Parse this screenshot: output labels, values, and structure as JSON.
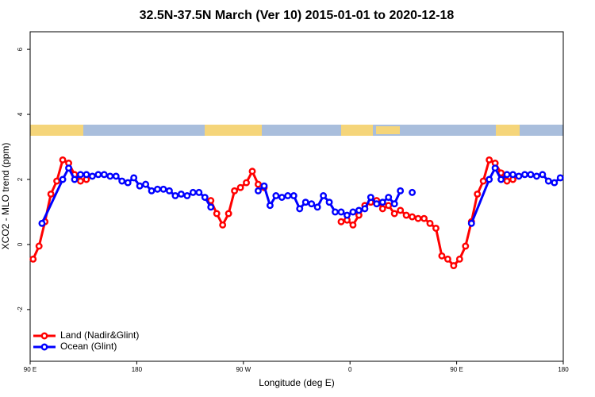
{
  "chart_data": {
    "type": "line",
    "title": "32.5N-37.5N March (Ver 10)   2015-01-01 to 2020-12-18",
    "xlabel": "Longitude (deg E)",
    "ylabel": "XCO2 - MLO trend (ppm)",
    "xlim": [
      90,
      540
    ],
    "ylim": [
      -3.59,
      6.54
    ],
    "xticks": [
      {
        "value": 90,
        "label": "90 E"
      },
      {
        "value": 180,
        "label": "180"
      },
      {
        "value": 270,
        "label": "90 W"
      },
      {
        "value": 360,
        "label": "0"
      },
      {
        "value": 450,
        "label": "90 E"
      },
      {
        "value": 540,
        "label": "180"
      }
    ],
    "yticks": [
      -2,
      0,
      2,
      4,
      6
    ],
    "legend": "bottomleft",
    "series": [
      {
        "name": "Land (Nadir&Glint)",
        "color": "#ff0000",
        "x": [
          92.5,
          97.5,
          102.5,
          107.5,
          112.5,
          117.5,
          122.5,
          127.5,
          132.5,
          137.5,
          142.5,
          242.5,
          247.5,
          252.5,
          257.5,
          262.5,
          267.5,
          272.5,
          277.5,
          282.5,
          287.5,
          292.5,
          352.5,
          357.5,
          362.5,
          367.5,
          372.5,
          377.5,
          382.5,
          387.5,
          392.5,
          397.5,
          402.5,
          407.5,
          412.5,
          417.5,
          422.5,
          427.5,
          432.5,
          437.5,
          442.5,
          447.5,
          452.5,
          457.5,
          462.5,
          467.5,
          472.5,
          477.5,
          482.5,
          487.5,
          492.5,
          497.5
        ],
        "values": [
          -0.45,
          -0.05,
          0.7,
          1.55,
          1.95,
          2.6,
          2.5,
          2.15,
          1.95,
          2.0,
          null,
          1.35,
          0.95,
          0.6,
          0.95,
          1.65,
          1.75,
          1.9,
          2.25,
          1.85,
          1.75,
          null,
          0.7,
          0.75,
          0.6,
          0.9,
          1.2,
          1.3,
          1.35,
          1.1,
          1.2,
          0.95,
          1.05,
          0.9,
          0.85,
          0.8,
          0.8,
          0.65,
          0.5,
          -0.35,
          -0.45,
          -0.65,
          -0.45,
          -0.05,
          0.7,
          1.55,
          1.95,
          2.6,
          2.5,
          2.2,
          1.95,
          2.0
        ]
      },
      {
        "name": "Ocean (Glint)",
        "color": "#0000ff",
        "x": [
          100,
          117.5,
          122.5,
          127.5,
          132.5,
          137.5,
          142.5,
          147.5,
          152.5,
          157.5,
          162.5,
          167.5,
          172.5,
          177.5,
          182.5,
          187.5,
          192.5,
          197.5,
          202.5,
          207.5,
          212.5,
          217.5,
          222.5,
          227.5,
          232.5,
          237.5,
          242.5,
          247.5,
          282.5,
          287.5,
          292.5,
          297.5,
          302.5,
          307.5,
          312.5,
          317.5,
          322.5,
          327.5,
          332.5,
          337.5,
          342.5,
          347.5,
          352.5,
          357.5,
          362.5,
          367.5,
          372.5,
          377.5,
          382.5,
          387.5,
          392.5,
          397.5,
          402.5,
          407.5,
          412.5,
          417.5,
          462.5,
          477.5,
          482.5,
          487.5,
          492.5,
          497.5,
          502.5,
          507.5,
          512.5,
          517.5,
          522.5,
          527.5,
          532.5,
          537.5
        ],
        "values": [
          0.65,
          2.0,
          2.35,
          2.0,
          2.15,
          2.15,
          2.1,
          2.15,
          2.15,
          2.1,
          2.1,
          1.95,
          1.9,
          2.05,
          1.8,
          1.85,
          1.65,
          1.7,
          1.7,
          1.65,
          1.5,
          1.55,
          1.5,
          1.6,
          1.6,
          1.45,
          1.15,
          null,
          1.65,
          1.8,
          1.2,
          1.5,
          1.45,
          1.5,
          1.5,
          1.1,
          1.3,
          1.25,
          1.15,
          1.5,
          1.3,
          1.0,
          1.0,
          0.9,
          1.0,
          1.05,
          1.1,
          1.45,
          1.25,
          1.3,
          1.45,
          1.25,
          1.65,
          null,
          1.6,
          null,
          0.65,
          2.0,
          2.35,
          2.0,
          2.15,
          2.15,
          2.1,
          2.15,
          2.15,
          2.1,
          2.15,
          1.95,
          1.9,
          2.05
        ]
      }
    ]
  }
}
